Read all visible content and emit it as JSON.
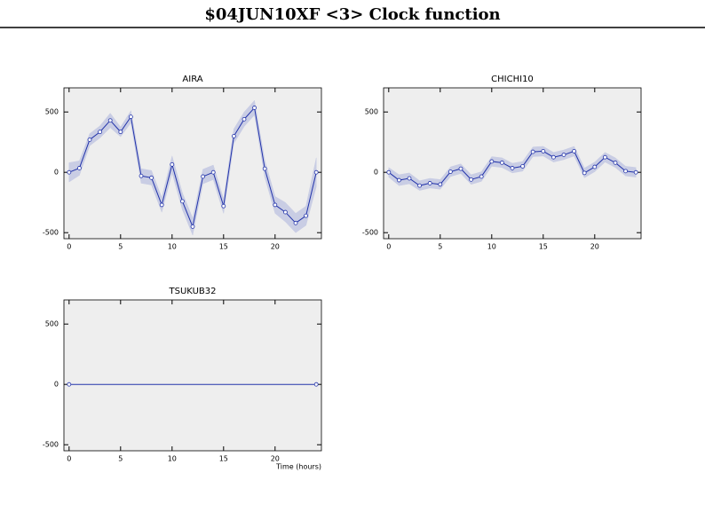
{
  "title": "$04JUN10XF <3>  Clock function",
  "chart_data": [
    {
      "type": "line",
      "title": "AIRA",
      "x": [
        0,
        1,
        2,
        3,
        4,
        5,
        6,
        7,
        8,
        9,
        10,
        11,
        12,
        13,
        14,
        15,
        16,
        17,
        18,
        19,
        20,
        21,
        22,
        23,
        24
      ],
      "values": [
        0,
        35,
        270,
        335,
        430,
        335,
        460,
        -30,
        -45,
        -270,
        65,
        -240,
        -450,
        -35,
        0,
        -280,
        300,
        440,
        535,
        30,
        -270,
        -330,
        -420,
        -360,
        0
      ],
      "errors": [
        80,
        60,
        50,
        50,
        60,
        40,
        50,
        60,
        60,
        60,
        70,
        70,
        70,
        60,
        60,
        60,
        60,
        60,
        60,
        70,
        70,
        80,
        80,
        80,
        120
      ],
      "color": "#2233aa",
      "band_color": "#c9cde4",
      "xlim": [
        -0.5,
        24.5
      ],
      "ylim": [
        -550,
        700
      ],
      "xticks": [
        0,
        5,
        10,
        15,
        20
      ],
      "yticks": [
        -500,
        0,
        500
      ]
    },
    {
      "type": "line",
      "title": "CHICHI10",
      "x": [
        0,
        1,
        2,
        3,
        4,
        5,
        6,
        7,
        8,
        9,
        10,
        11,
        12,
        13,
        14,
        15,
        16,
        17,
        18,
        19,
        20,
        21,
        22,
        23,
        24
      ],
      "values": [
        0,
        -65,
        -50,
        -110,
        -90,
        -100,
        5,
        30,
        -60,
        -35,
        90,
        80,
        35,
        50,
        170,
        175,
        125,
        145,
        175,
        -5,
        45,
        125,
        80,
        10,
        0
      ],
      "errors": [
        40,
        45,
        45,
        40,
        40,
        40,
        40,
        40,
        40,
        40,
        40,
        40,
        40,
        40,
        40,
        40,
        40,
        40,
        40,
        40,
        40,
        40,
        40,
        40,
        40
      ],
      "color": "#2233aa",
      "band_color": "#c9cde4",
      "xlim": [
        -0.5,
        24.5
      ],
      "ylim": [
        -550,
        700
      ],
      "xticks": [
        0,
        5,
        10,
        15,
        20
      ],
      "yticks": [
        -500,
        0,
        500
      ]
    },
    {
      "type": "line",
      "title": "TSUKUB32",
      "xlabel": "Time (hours)",
      "x": [
        0,
        24
      ],
      "values": [
        0,
        0
      ],
      "errors": [
        0,
        0
      ],
      "color": "#2233aa",
      "band_color": "#c9cde4",
      "xlim": [
        -0.5,
        24.5
      ],
      "ylim": [
        -550,
        700
      ],
      "xticks": [
        0,
        5,
        10,
        15,
        20
      ],
      "yticks": [
        -500,
        0,
        500
      ]
    }
  ]
}
